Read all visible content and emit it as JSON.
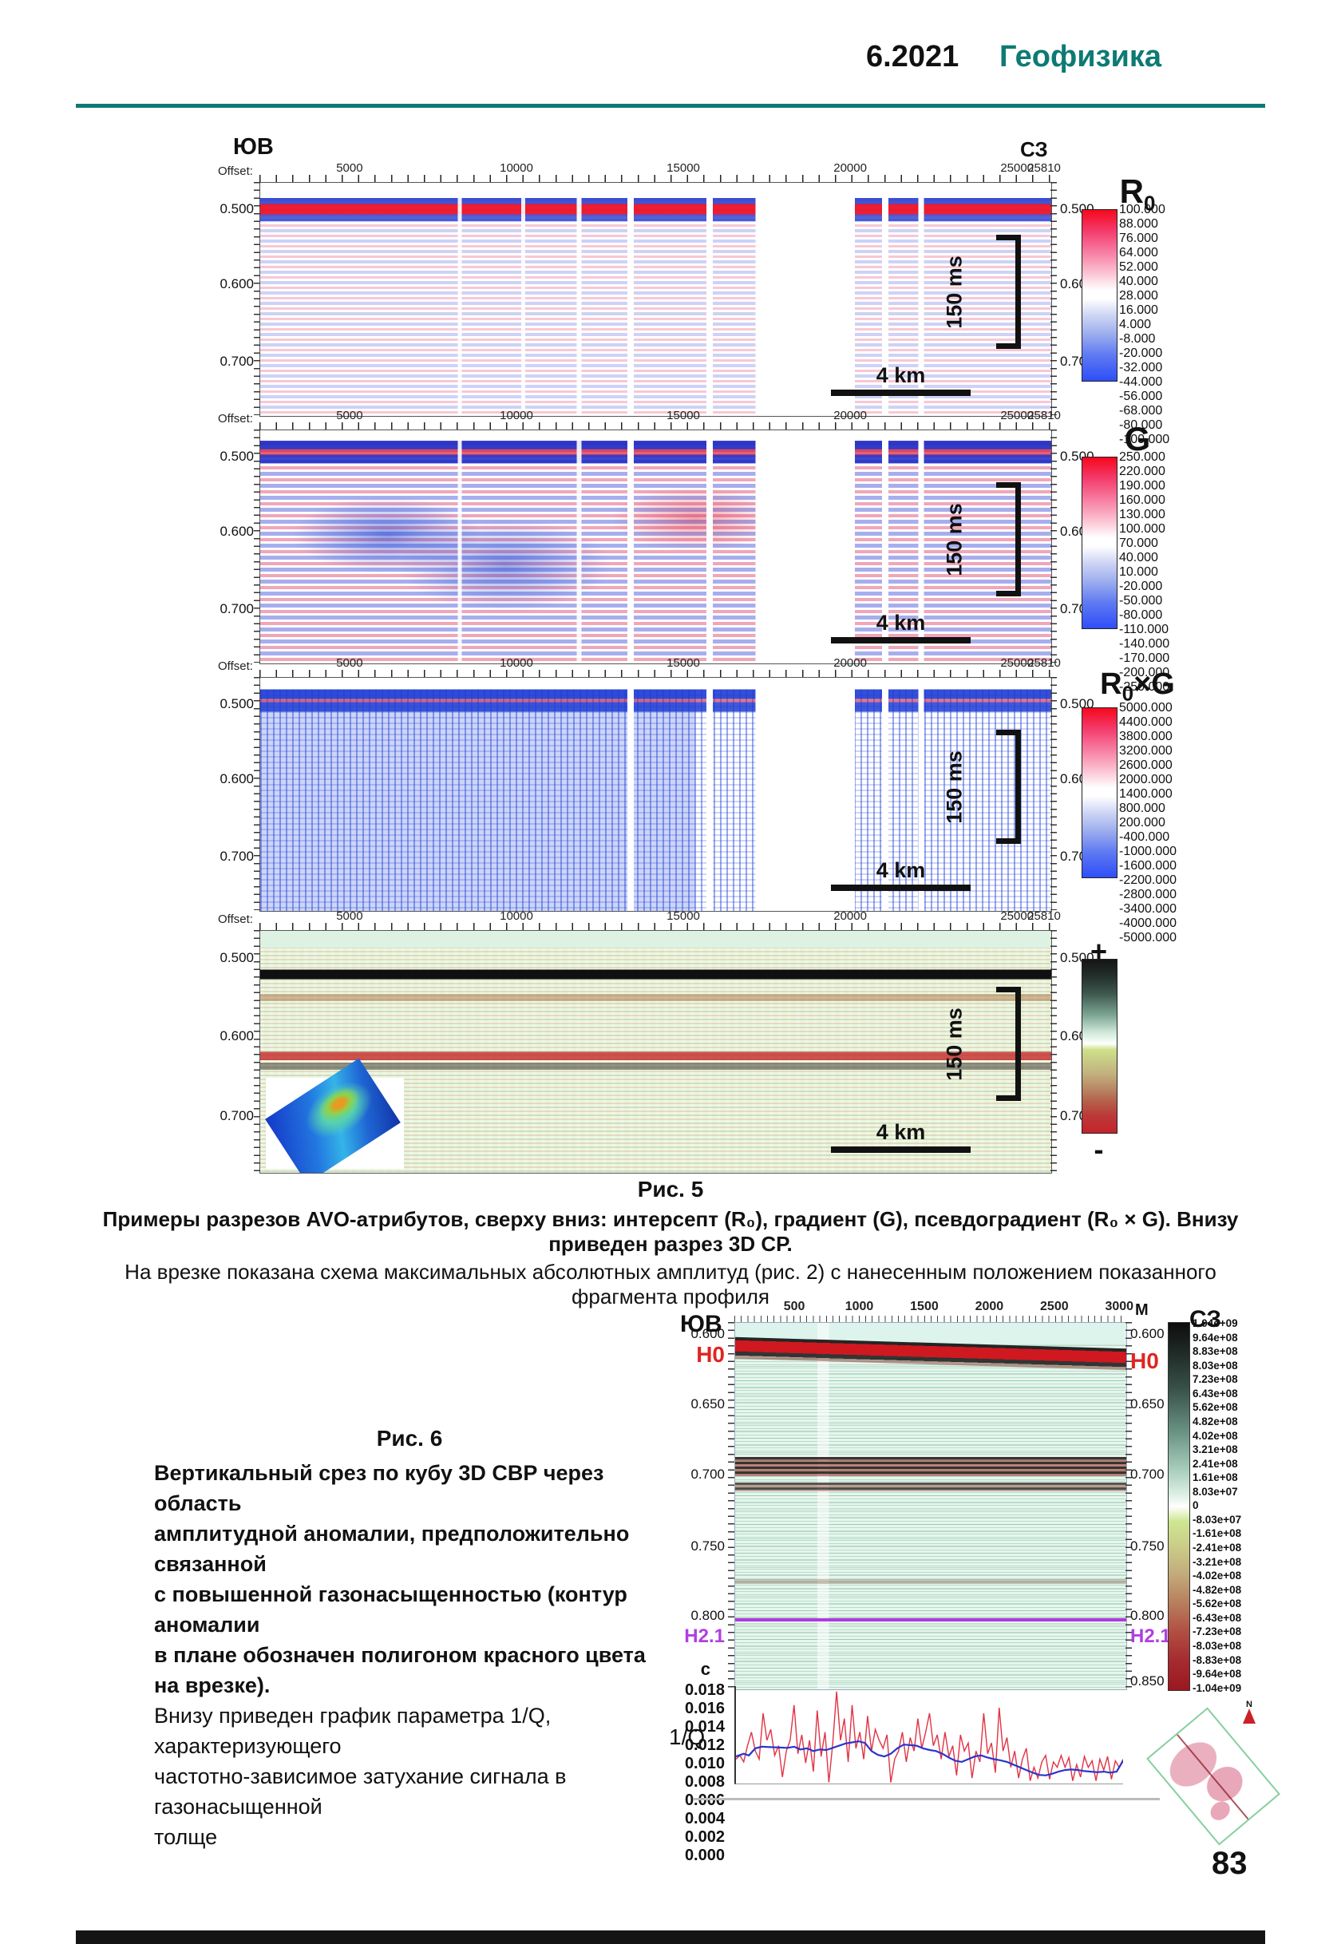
{
  "page": {
    "header_issue": "6.2021",
    "header_journal": "Геофизика",
    "accent_color": "#0d7a74",
    "page_number": "83"
  },
  "fig5": {
    "corner_left": "ЮВ",
    "corner_right": "СЗ",
    "offset_label": "Offset:",
    "offset_ticks": [
      5000,
      10000,
      15000,
      20000,
      25000,
      25810
    ],
    "time_ticks": [
      "0.500",
      "0.600",
      "0.700"
    ],
    "scale_h": "4 km",
    "scale_v": "150 ms",
    "panels": [
      {
        "title_main": "R",
        "title_sub": "0",
        "title_suffix": "",
        "colorbar_values": [
          "100.000",
          "88.000",
          "76.000",
          "64.000",
          "52.000",
          "40.000",
          "28.000",
          "16.000",
          "4.000",
          "-8.000",
          "-20.000",
          "-32.000",
          "-44.000",
          "-56.000",
          "-68.000",
          "-80.000",
          "-100.000"
        ]
      },
      {
        "title_main": "G",
        "title_sub": "",
        "title_suffix": "",
        "colorbar_values": [
          "250.000",
          "220.000",
          "190.000",
          "160.000",
          "130.000",
          "100.000",
          "70.000",
          "40.000",
          "10.000",
          "-20.000",
          "-50.000",
          "-80.000",
          "-110.000",
          "-140.000",
          "-170.000",
          "-200.000",
          "-250.000"
        ]
      },
      {
        "title_main": "R",
        "title_sub": "0",
        "title_suffix": "×G",
        "colorbar_values": [
          "5000.000",
          "4400.000",
          "3800.000",
          "3200.000",
          "2600.000",
          "2000.000",
          "1400.000",
          "800.000",
          "200.000",
          "-400.000",
          "-1000.000",
          "-1600.000",
          "-2200.000",
          "-2800.000",
          "-3400.000",
          "-4000.000",
          "-5000.000"
        ]
      },
      {
        "title_plus": "+",
        "title_minus": "-",
        "colorbar_values": []
      }
    ],
    "caption": {
      "label": "Рис. 5",
      "bold": "Примеры разрезов AVO-атрибутов, сверху вниз: интерсепт (R₀), градиент (G), псевдоградиент (R₀ × G). Внизу приведен разрез 3D СР.",
      "regular": "На врезке показана схема максимальных абсолютных амплитуд (рис. 2) с нанесенным положением показанного фрагмента профиля"
    }
  },
  "fig6": {
    "caption": {
      "label": "Рис. 6",
      "bold_lines": [
        "Вертикальный срез по кубу 3D СВР через область",
        "амплитудной аномалии, предположительно связанной",
        "с повышенной газонасыщенностью (контур аномалии",
        "в плане обозначен полигоном красного цвета на врезке)."
      ],
      "regular_lines": [
        "Внизу приведен график параметра 1/Q, характеризующего",
        "частотно-зависимое затухание сигнала в газонасыщенной",
        "толще"
      ]
    },
    "corner_left": "ЮВ",
    "corner_right": "СЗ",
    "unit_label": "М",
    "x_ticks": [
      500,
      1000,
      1500,
      2000,
      2500,
      3000
    ],
    "axis_labels": {
      "t600": "0.600",
      "t650": "0.650",
      "t700": "0.700",
      "t750": "0.750",
      "t800": "0.800",
      "t850": "0.850",
      "h0": "H0",
      "h21": "H2.1"
    },
    "seconds_label": "с",
    "colorbar_values": [
      "1.04e+09",
      "9.64e+08",
      "8.83e+08",
      "8.03e+08",
      "7.23e+08",
      "6.43e+08",
      "5.62e+08",
      "4.82e+08",
      "4.02e+08",
      "3.21e+08",
      "2.41e+08",
      "1.61e+08",
      "8.03e+07",
      "0",
      "-8.03e+07",
      "-1.61e+08",
      "-2.41e+08",
      "-3.21e+08",
      "-4.02e+08",
      "-4.82e+08",
      "-5.62e+08",
      "-6.43e+08",
      "-7.23e+08",
      "-8.03e+08",
      "-8.83e+08",
      "-9.64e+08",
      "-1.04e+09"
    ],
    "qplot": {
      "ylabel": "1/Q",
      "yticks": [
        "0.018",
        "0.016",
        "0.014",
        "0.012",
        "0.010",
        "0.008",
        "0.006",
        "0.004",
        "0.002",
        "0.000"
      ]
    },
    "inset_north": "N"
  },
  "chart_data": {
    "type": "line",
    "title": "",
    "xlabel": "",
    "ylabel": "1/Q",
    "xlim": [
      0,
      3000
    ],
    "ylim": [
      0,
      0.018
    ],
    "grid": false,
    "legend": "none",
    "series": [
      {
        "name": "1/Q raw",
        "color": "#e03344",
        "points": [
          [
            0,
            0.0045
          ],
          [
            30,
            0.0052
          ],
          [
            60,
            0.004
          ],
          [
            90,
            0.007
          ],
          [
            120,
            0.0095
          ],
          [
            150,
            0.006
          ],
          [
            180,
            0.0045
          ],
          [
            210,
            0.013
          ],
          [
            240,
            0.008
          ],
          [
            270,
            0.01
          ],
          [
            300,
            0.0052
          ],
          [
            330,
            0.007
          ],
          [
            360,
            0.0012
          ],
          [
            390,
            0.006
          ],
          [
            420,
            0.008
          ],
          [
            450,
            0.0145
          ],
          [
            480,
            0.0055
          ],
          [
            510,
            0.009
          ],
          [
            540,
            0.0038
          ],
          [
            570,
            0.008
          ],
          [
            600,
            0.0022
          ],
          [
            630,
            0.0135
          ],
          [
            660,
            0.005
          ],
          [
            690,
            0.0095
          ],
          [
            720,
            0.0002
          ],
          [
            750,
            0.0075
          ],
          [
            780,
            0.017
          ],
          [
            810,
            0.008
          ],
          [
            840,
            0.012
          ],
          [
            870,
            0.004
          ],
          [
            900,
            0.0145
          ],
          [
            930,
            0.0065
          ],
          [
            960,
            0.0095
          ],
          [
            990,
            0.0045
          ],
          [
            1020,
            0.0125
          ],
          [
            1050,
            0.006
          ],
          [
            1080,
            0.01
          ],
          [
            1110,
            0.008
          ],
          [
            1140,
            0.0065
          ],
          [
            1170,
            0.009
          ],
          [
            1200,
            0.0002
          ],
          [
            1230,
            0.0045
          ],
          [
            1260,
            0.006
          ],
          [
            1290,
            0.0095
          ],
          [
            1320,
            0.004
          ],
          [
            1350,
            0.0085
          ],
          [
            1380,
            0.006
          ],
          [
            1410,
            0.012
          ],
          [
            1440,
            0.0065
          ],
          [
            1470,
            0.0095
          ],
          [
            1500,
            0.013
          ],
          [
            1530,
            0.007
          ],
          [
            1560,
            0.009
          ],
          [
            1590,
            0.0045
          ],
          [
            1620,
            0.0095
          ],
          [
            1650,
            0.005
          ],
          [
            1680,
            0.007
          ],
          [
            1710,
            0.0015
          ],
          [
            1740,
            0.009
          ],
          [
            1770,
            0.006
          ],
          [
            1800,
            0.0075
          ],
          [
            1830,
            0.001
          ],
          [
            1860,
            0.006
          ],
          [
            1890,
            0.004
          ],
          [
            1920,
            0.013
          ],
          [
            1950,
            0.0055
          ],
          [
            1980,
            0.0075
          ],
          [
            2010,
            0.002
          ],
          [
            2040,
            0.014
          ],
          [
            2070,
            0.006
          ],
          [
            2100,
            0.0085
          ],
          [
            2130,
            0.003
          ],
          [
            2160,
            0.006
          ],
          [
            2190,
            0.001
          ],
          [
            2220,
            0.0045
          ],
          [
            2250,
            0.0065
          ],
          [
            2280,
            0.0005
          ],
          [
            2310,
            0.003
          ],
          [
            2340,
            0.001
          ],
          [
            2370,
            0.004
          ],
          [
            2400,
            0.0052
          ],
          [
            2430,
            0.0008
          ],
          [
            2460,
            0.004
          ],
          [
            2490,
            0.003
          ],
          [
            2520,
            0.0052
          ],
          [
            2550,
            0.003
          ],
          [
            2580,
            0.0048
          ],
          [
            2610,
            0.0005
          ],
          [
            2640,
            0.0035
          ],
          [
            2670,
            0.0012
          ],
          [
            2700,
            0.005
          ],
          [
            2730,
            0.003
          ],
          [
            2760,
            0.0042
          ],
          [
            2790,
            0.0005
          ],
          [
            2820,
            0.0045
          ],
          [
            2850,
            0.0025
          ],
          [
            2880,
            0.005
          ],
          [
            2910,
            0.0008
          ],
          [
            2940,
            0.0042
          ],
          [
            2970,
            0.003
          ],
          [
            3000,
            0.0045
          ]
        ]
      },
      {
        "name": "1/Q smoothed",
        "color": "#2a35cc",
        "points": [
          [
            0,
            0.005
          ],
          [
            60,
            0.0055
          ],
          [
            100,
            0.0052
          ],
          [
            150,
            0.0065
          ],
          [
            200,
            0.0068
          ],
          [
            300,
            0.0067
          ],
          [
            400,
            0.0066
          ],
          [
            450,
            0.0068
          ],
          [
            500,
            0.0063
          ],
          [
            550,
            0.0065
          ],
          [
            600,
            0.006
          ],
          [
            650,
            0.0063
          ],
          [
            700,
            0.0062
          ],
          [
            750,
            0.0066
          ],
          [
            800,
            0.007
          ],
          [
            850,
            0.0074
          ],
          [
            900,
            0.0076
          ],
          [
            950,
            0.0078
          ],
          [
            1000,
            0.0075
          ],
          [
            1050,
            0.006
          ],
          [
            1100,
            0.0053
          ],
          [
            1150,
            0.005
          ],
          [
            1200,
            0.0055
          ],
          [
            1250,
            0.0065
          ],
          [
            1300,
            0.0072
          ],
          [
            1350,
            0.0071
          ],
          [
            1400,
            0.007
          ],
          [
            1450,
            0.0065
          ],
          [
            1500,
            0.0062
          ],
          [
            1550,
            0.006
          ],
          [
            1600,
            0.0055
          ],
          [
            1650,
            0.0048
          ],
          [
            1700,
            0.0042
          ],
          [
            1750,
            0.004
          ],
          [
            1800,
            0.0045
          ],
          [
            1850,
            0.005
          ],
          [
            1900,
            0.0052
          ],
          [
            1950,
            0.0048
          ],
          [
            2000,
            0.0045
          ],
          [
            2050,
            0.0043
          ],
          [
            2100,
            0.004
          ],
          [
            2150,
            0.0035
          ],
          [
            2200,
            0.003
          ],
          [
            2250,
            0.0025
          ],
          [
            2300,
            0.002
          ],
          [
            2350,
            0.0016
          ],
          [
            2400,
            0.0015
          ],
          [
            2450,
            0.0018
          ],
          [
            2500,
            0.0022
          ],
          [
            2550,
            0.0025
          ],
          [
            2600,
            0.0026
          ],
          [
            2650,
            0.0025
          ],
          [
            2700,
            0.0023
          ],
          [
            2750,
            0.0022
          ],
          [
            2800,
            0.0021
          ],
          [
            2850,
            0.0022
          ],
          [
            2900,
            0.002
          ],
          [
            2950,
            0.0022
          ],
          [
            3000,
            0.0042
          ]
        ]
      }
    ]
  }
}
